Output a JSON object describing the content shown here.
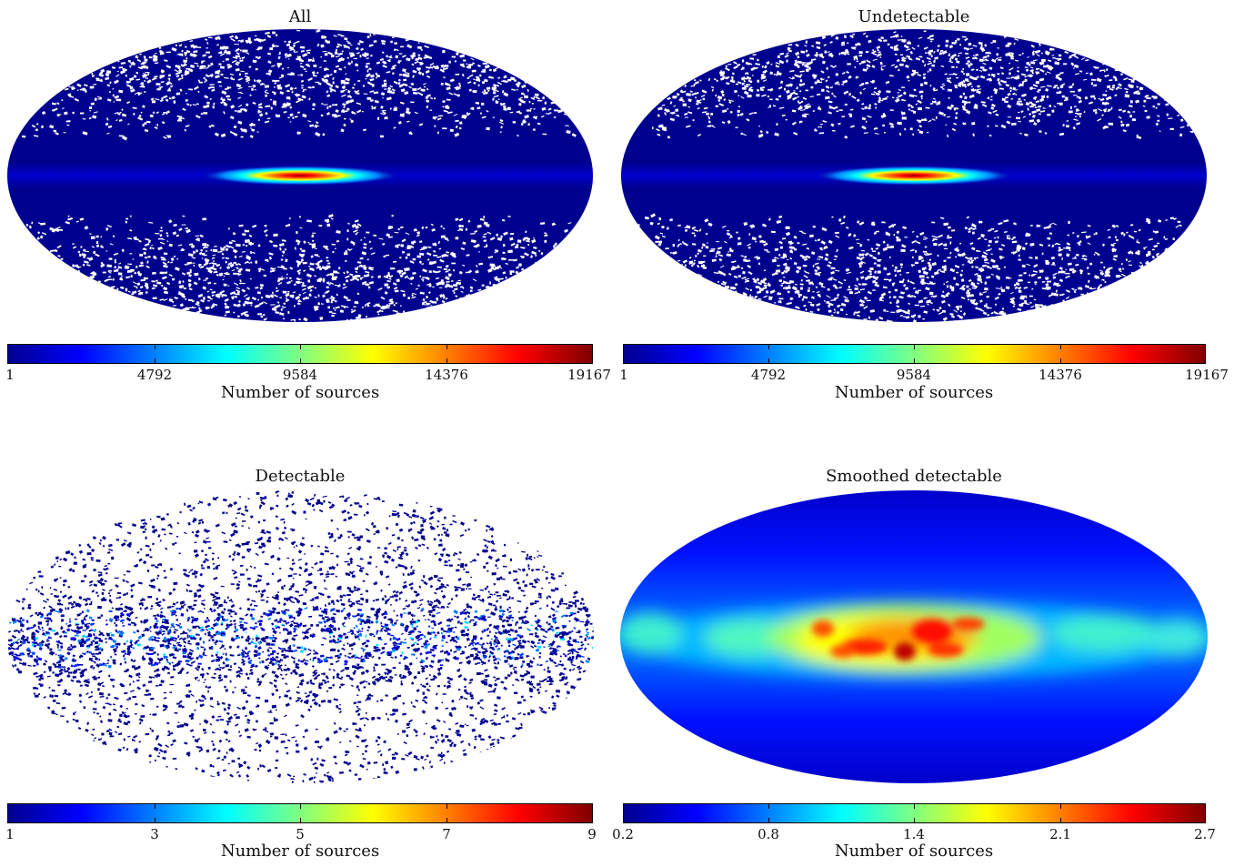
{
  "chart_data": [
    {
      "type": "heatmap",
      "projection": "mollweide",
      "title": "All",
      "colorbar": {
        "label": "Number of sources",
        "ticks": [
          "1",
          "4792",
          "9584",
          "14376",
          "19167"
        ],
        "range": [
          1,
          19167
        ],
        "colormap": "jet"
      },
      "pattern": "bright compact galactic-centre bulge, sparse speckle at high latitudes"
    },
    {
      "type": "heatmap",
      "projection": "mollweide",
      "title": "Undetectable",
      "colorbar": {
        "label": "Number of sources",
        "ticks": [
          "1",
          "4792",
          "9584",
          "14376",
          "19167"
        ],
        "range": [
          1,
          19167
        ],
        "colormap": "jet"
      },
      "pattern": "bright compact galactic-centre bulge, sparse speckle at high latitudes"
    },
    {
      "type": "heatmap",
      "projection": "mollweide",
      "title": "Detectable",
      "colorbar": {
        "label": "Number of sources",
        "ticks": [
          "1",
          "3",
          "5",
          "7",
          "9"
        ],
        "range": [
          1,
          9
        ],
        "colormap": "jet"
      },
      "pattern": "noisy scatter concentrated along galactic plane"
    },
    {
      "type": "heatmap",
      "projection": "mollweide",
      "title": "Smoothed detectable",
      "colorbar": {
        "label": "Number of sources",
        "ticks": [
          "0.2",
          "0.8",
          "1.4",
          "2.1",
          "2.7"
        ],
        "range": [
          0.2,
          2.7
        ],
        "colormap": "jet"
      },
      "pattern": "smooth band along galactic plane peaking near centre"
    }
  ],
  "colors": {
    "navy": "#00008f",
    "blue": "#0000ff",
    "cyan": "#00ffff",
    "yellow": "#ffff00",
    "red": "#ff0000",
    "darkred": "#800000"
  }
}
